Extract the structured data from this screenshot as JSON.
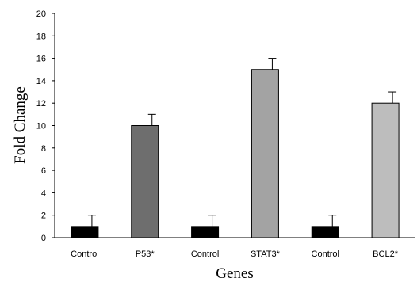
{
  "chart_data": {
    "type": "bar",
    "title": "",
    "xlabel": "Genes",
    "ylabel": "Fold Change",
    "ylim": [
      0,
      20
    ],
    "yticks": [
      0,
      2,
      4,
      6,
      8,
      10,
      12,
      14,
      16,
      18,
      20
    ],
    "grid": false,
    "categories": [
      "Control",
      "P53*",
      "Control",
      "STAT3*",
      "Control",
      "BCL2*"
    ],
    "values": [
      1,
      10,
      1,
      15,
      1,
      12
    ],
    "error": [
      1,
      1,
      1,
      1,
      1,
      1
    ],
    "colors": [
      "#000000",
      "#6e6e6e",
      "#000000",
      "#a3a3a3",
      "#000000",
      "#bdbdbd"
    ]
  }
}
